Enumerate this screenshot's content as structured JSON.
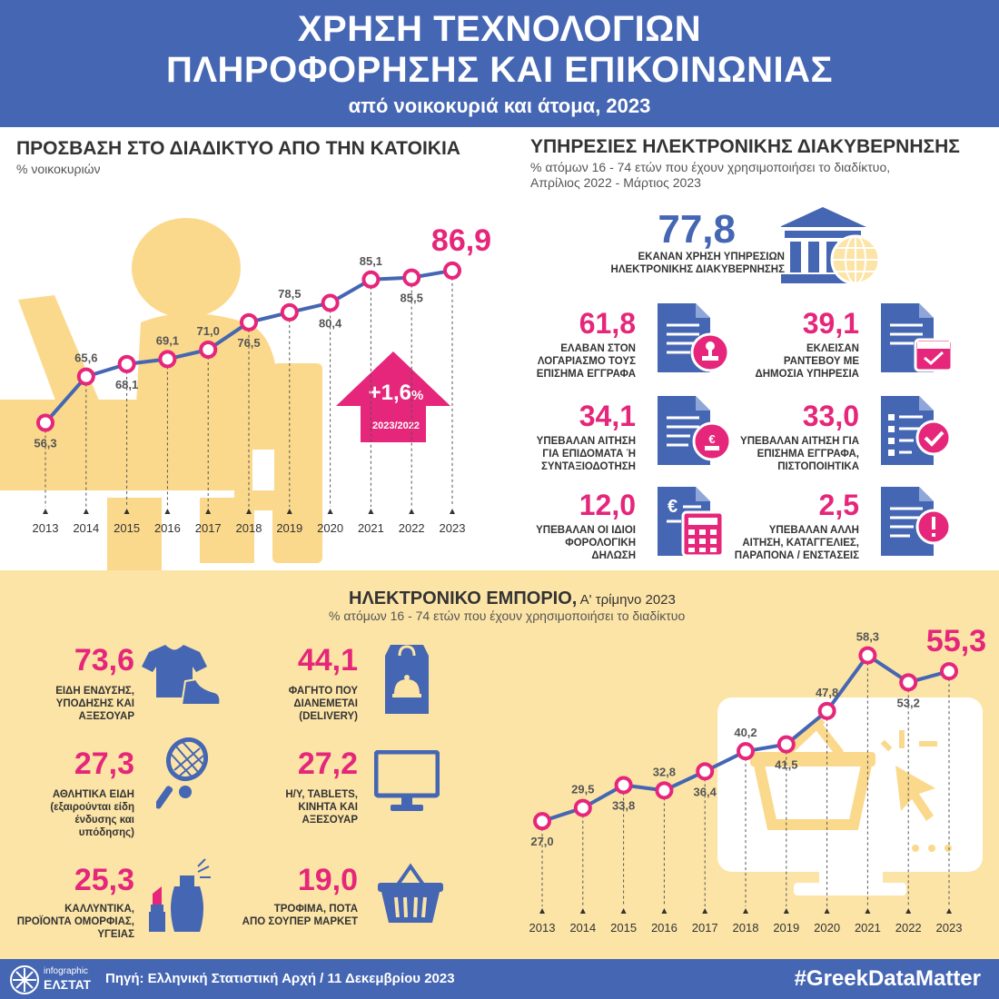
{
  "header": {
    "title_line1": "ΧΡΗΣΗ ΤΕΧΝΟΛΟΓΙΩΝ",
    "title_line2": "ΠΛΗΡΟΦΟΡΗΣΗΣ ΚΑΙ ΕΠΙΚΟΙΝΩΝΙΑΣ",
    "subtitle": "από νοικοκυριά και άτομα, 2023"
  },
  "internet": {
    "title": "ΠΡΟΣΒΑΣΗ ΣΤΟ ΔΙΑΔΙΚΤΥΟ ΑΠΟ ΤΗΝ ΚΑΤΟΙΚΙΑ",
    "subtitle": "% νοικοκυριών",
    "change_value": "+1,6",
    "change_unit": "%",
    "change_period": "2023/2022"
  },
  "egov": {
    "title": "ΥΠΗΡΕΣΙΕΣ ΗΛΕΚΤΡΟΝΙΚΗΣ ΔΙΑΚΥΒΕΡΝΗΣΗΣ",
    "subtitle_line1": "% ατόμων 16 - 74 ετών που έχουν χρησιμοποιήσει το διαδίκτυο,",
    "subtitle_line2": "Απρίλιος 2022 - Μάρτιος 2023",
    "main_value": "77,8",
    "main_caption_line1": "ΕΚΑΝΑΝ ΧΡΗΣΗ ΥΠΗΡΕΣΙΩΝ",
    "main_caption_line2": "ΗΛΕΚΤΡΟΝΙΚΗΣ ΔΙΑΚΥΒΕΡΝΗΣΗΣ",
    "items": [
      {
        "value": "61,8",
        "l1": "ΕΛΑΒΑΝ ΣΤΟΝ",
        "l2": "ΛΟΓΑΡΙΑΣΜΟ ΤΟΥΣ",
        "l3": "ΕΠΙΣΗΜΑ ΕΓΓΡΑΦΑ",
        "icon": "document-stamp-icon"
      },
      {
        "value": "39,1",
        "l1": "ΕΚΛΕΙΣΑΝ",
        "l2": "ΡΑΝΤΕΒΟΥ ΜΕ",
        "l3": "ΔΗΜΟΣΙΑ ΥΠΗΡΕΣΙΑ",
        "icon": "document-calendar-icon"
      },
      {
        "value": "34,1",
        "l1": "ΥΠΕΒΑΛΑΝ ΑΙΤΗΣΗ",
        "l2": "ΓΙΑ ΕΠΙΔΟΜΑΤΑ Ή",
        "l3": "ΣΥΝΤΑΞΙΟΔΟΤΗΣΗ",
        "icon": "document-pension-icon"
      },
      {
        "value": "33,0",
        "l1": "ΥΠΕΒΑΛΑΝ ΑΙΤΗΣΗ ΓΙΑ",
        "l2": "ΕΠΙΣΗΜΑ ΕΓΓΡΑΦΑ,",
        "l3": "ΠΙΣΤΟΠΟΙΗΤΙΚΑ",
        "icon": "document-check-icon"
      },
      {
        "value": "12,0",
        "l1": "ΥΠΕΒΑΛΑΝ ΟΙ ΙΔΙΟΙ",
        "l2": "ΦΟΡΟΛΟΓΙΚΗ",
        "l3": "ΔΗΛΩΣΗ",
        "icon": "document-calculator-icon"
      },
      {
        "value": "2,5",
        "l1": "ΥΠΕΒΑΛΑΝ ΑΛΛΗ",
        "l2": "ΑΙΤΗΣΗ, ΚΑΤΑΓΓΕΛΙΕΣ,",
        "l3": "ΠΑΡΑΠΟΝΑ / ΕΝΣΤΑΣΕΙΣ",
        "icon": "document-alert-icon"
      }
    ]
  },
  "ecommerce": {
    "title_bold": "ΗΛΕΚΤΡΟΝΙΚΟ ΕΜΠΟΡΙΟ,",
    "title_rest": " Α' τρίμηνο 2023",
    "subtitle": "% ατόμων 16 - 74 ετών που έχουν χρησιμοποιήσει το διαδίκτυο",
    "items": [
      {
        "value": "73,6",
        "lines": [
          "ΕΙΔΗ ΕΝΔΥΣΗΣ,",
          "ΥΠΟΔΗΣΗΣ ΚΑΙ",
          "ΑΞΕΣΟΥΑΡ"
        ],
        "icon": "clothes-shoe-icon"
      },
      {
        "value": "44,1",
        "lines": [
          "ΦΑΓΗΤΟ ΠΟΥ",
          "ΔΙΑΝΕΜΕΤΑΙ",
          "(DELIVERY)"
        ],
        "icon": "food-delivery-bag-icon"
      },
      {
        "value": "27,3",
        "lines": [
          "ΑΘΛΗΤΙΚΑ ΕΙΔΗ",
          "(εξαιρούνται είδη",
          "ένδυσης και",
          "υπόδησης)"
        ],
        "icon": "tennis-racket-icon"
      },
      {
        "value": "27,2",
        "lines": [
          "Η/Υ, TABLETS,",
          "ΚΙΝΗΤΑ ΚΑΙ",
          "ΑΞΕΣΟΥΑΡ"
        ],
        "icon": "computer-monitor-icon"
      },
      {
        "value": "25,3",
        "lines": [
          "ΚΑΛΛΥΝΤΙΚΑ,",
          "ΠΡΟΪΟΝΤΑ ΟΜΟΡΦΙΑΣ,",
          "ΥΓΕΙΑΣ"
        ],
        "icon": "lipstick-perfume-icon"
      },
      {
        "value": "19,0",
        "lines": [
          "ΤΡΟΦΙΜΑ, ΠΟΤΑ",
          "ΑΠΟ ΣΟΥΠΕΡ ΜΑΡΚΕΤ"
        ],
        "icon": "shopping-basket-icon"
      }
    ]
  },
  "footer": {
    "logo_top": "infographic",
    "logo_bottom": "ΕΛΣΤΑΤ",
    "source": "Πηγή: Ελληνική Στατιστική Αρχή  / 11 Δεκεμβρίου 2023",
    "hashtag": "#GreekDataMatter"
  },
  "colors": {
    "blue": "#4566b3",
    "pink": "#e5267a",
    "cream": "#fce4a6",
    "illustration": "#fbd98c"
  },
  "chart_data": [
    {
      "type": "line",
      "x": [
        "2013",
        "2014",
        "2015",
        "2016",
        "2017",
        "2018",
        "2019",
        "2020",
        "2021",
        "2022",
        "2023"
      ],
      "values": [
        56.3,
        65.6,
        68.1,
        69.1,
        71.0,
        76.5,
        78.5,
        80.4,
        85.1,
        85.5,
        86.9
      ],
      "labels": [
        "56,3",
        "65,6",
        "68,1",
        "69,1",
        "71,0",
        "76,5",
        "78,5",
        "80,4",
        "85,1",
        "85,5",
        "86,9"
      ],
      "ylim": [
        50,
        92
      ]
    },
    {
      "type": "line",
      "x": [
        "2013",
        "2014",
        "2015",
        "2016",
        "2017",
        "2018",
        "2019",
        "2020",
        "2021",
        "2022",
        "2023"
      ],
      "values": [
        27.0,
        29.5,
        33.8,
        32.8,
        36.4,
        40.2,
        41.5,
        47.8,
        58.3,
        53.2,
        55.3
      ],
      "labels": [
        "27,0",
        "29,5",
        "33,8",
        "32,8",
        "36,4",
        "40,2",
        "41,5",
        "47,8",
        "58,3",
        "53,2",
        "55,3"
      ],
      "ylim": [
        20,
        62
      ]
    }
  ]
}
